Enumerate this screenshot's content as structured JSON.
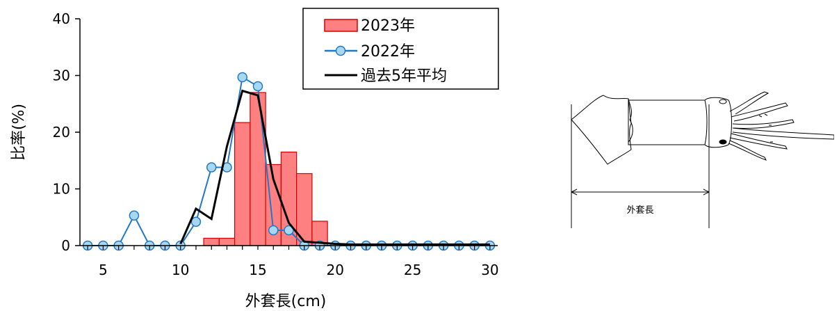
{
  "chart_data": {
    "type": "bar",
    "xlabel": "外套長(cm)",
    "ylabel": "比率(%)",
    "xlim": [
      3.5,
      30.5
    ],
    "ylim": [
      0,
      40
    ],
    "xticks": [
      5,
      10,
      15,
      20,
      25,
      30
    ],
    "yticks": [
      0,
      10,
      20,
      30,
      40
    ],
    "grid": false,
    "legend_position": "top-right",
    "series": [
      {
        "name": "2023年",
        "type": "bar",
        "color": "#ff8080",
        "edge_color": "#d40000",
        "x": [
          12,
          13,
          14,
          15,
          16,
          17,
          18,
          19
        ],
        "values": [
          1.3,
          1.3,
          21.7,
          27.0,
          14.3,
          16.5,
          12.7,
          4.3
        ]
      },
      {
        "name": "2022年",
        "type": "line",
        "color": "#1f78c8",
        "marker_fill": "#a8d8f0",
        "x": [
          4,
          5,
          6,
          7,
          8,
          9,
          10,
          11,
          12,
          13,
          14,
          15,
          16,
          17,
          18,
          19,
          20,
          21,
          22,
          23,
          24,
          25,
          26,
          27,
          28,
          29,
          30
        ],
        "values": [
          0,
          0,
          0,
          5.3,
          0,
          0,
          0,
          4.2,
          13.8,
          13.8,
          29.7,
          28.1,
          2.7,
          2.7,
          0,
          0,
          0,
          0,
          0,
          0,
          0,
          0,
          0,
          0,
          0,
          0,
          0
        ]
      },
      {
        "name": "過去5年平均",
        "type": "line",
        "color": "#000000",
        "x": [
          10,
          11,
          12,
          13,
          14,
          15,
          16,
          17,
          18,
          19,
          20,
          21,
          22,
          23,
          24,
          25,
          26,
          27,
          28,
          29,
          30
        ],
        "values": [
          0.3,
          6.5,
          4.7,
          17.5,
          27.3,
          26.5,
          11.7,
          4.0,
          0.7,
          0.5,
          0.3,
          0.2,
          0.2,
          0.2,
          0.2,
          0.2,
          0.2,
          0.2,
          0.2,
          0.2,
          0.2
        ]
      }
    ]
  },
  "figure": {
    "mantle_label": "外套長"
  }
}
